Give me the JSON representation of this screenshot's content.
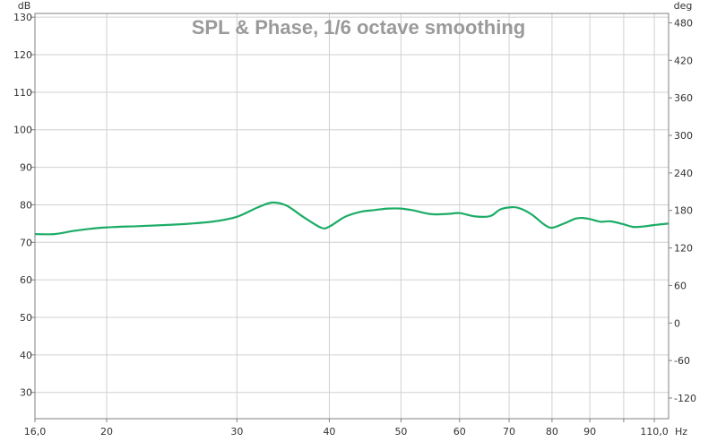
{
  "chart_data": {
    "type": "line",
    "title": "SPL & Phase, 1/6 octave smoothing",
    "ylabel_left": "dB",
    "ylabel_right": "deg",
    "xunit": "Hz",
    "xscale": "log",
    "xlim": [
      16,
      115
    ],
    "ylim": [
      23,
      131
    ],
    "ylim_right": [
      -153,
      495
    ],
    "x_ticks": [
      {
        "v": 16,
        "label": "16,0"
      },
      {
        "v": 20,
        "label": "20"
      },
      {
        "v": 30,
        "label": "30"
      },
      {
        "v": 40,
        "label": "40"
      },
      {
        "v": 50,
        "label": "50"
      },
      {
        "v": 60,
        "label": "60"
      },
      {
        "v": 70,
        "label": "70"
      },
      {
        "v": 80,
        "label": "80"
      },
      {
        "v": 90,
        "label": "90"
      },
      {
        "v": 100,
        "label": ""
      },
      {
        "v": 110,
        "label": "110,0"
      }
    ],
    "y_ticks": [
      {
        "v": 30,
        "label": "30"
      },
      {
        "v": 40,
        "label": "40"
      },
      {
        "v": 50,
        "label": "50"
      },
      {
        "v": 60,
        "label": "60"
      },
      {
        "v": 70,
        "label": "70"
      },
      {
        "v": 80,
        "label": "80"
      },
      {
        "v": 90,
        "label": "90"
      },
      {
        "v": 100,
        "label": "100"
      },
      {
        "v": 110,
        "label": "110"
      },
      {
        "v": 120,
        "label": "120"
      },
      {
        "v": 130,
        "label": "130"
      }
    ],
    "y_right_ticks": [
      {
        "v": -120,
        "label": "-120"
      },
      {
        "v": -60,
        "label": "-60"
      },
      {
        "v": 0,
        "label": "0"
      },
      {
        "v": 60,
        "label": "60"
      },
      {
        "v": 120,
        "label": "120"
      },
      {
        "v": 180,
        "label": "180"
      },
      {
        "v": 240,
        "label": "240"
      },
      {
        "v": 300,
        "label": "300"
      },
      {
        "v": 360,
        "label": "360"
      },
      {
        "v": 420,
        "label": "420"
      },
      {
        "v": 480,
        "label": "480"
      }
    ],
    "grid": true,
    "colors": {
      "spl": "#1cac66",
      "grid": "#d0d0d0",
      "axis": "#808080",
      "title": "#9a9a9a"
    },
    "series": [
      {
        "color": "#1cac66",
        "x": [
          16,
          17,
          18,
          19,
          20,
          22,
          24,
          26,
          28,
          30,
          32,
          33.5,
          35,
          37,
          39,
          40,
          42,
          44,
          46,
          48,
          50,
          52,
          55,
          58,
          60,
          63,
          66,
          68,
          70,
          72,
          75,
          78,
          80,
          83,
          86,
          88,
          90,
          93,
          96,
          100,
          103,
          106,
          110,
          115
        ],
        "y": [
          72.2,
          72.2,
          73.0,
          73.6,
          74.0,
          74.3,
          74.6,
          75.0,
          75.6,
          76.8,
          79.3,
          80.6,
          79.8,
          76.6,
          73.9,
          74.2,
          76.8,
          78.1,
          78.6,
          79.0,
          79.0,
          78.5,
          77.5,
          77.6,
          77.8,
          76.9,
          77.0,
          78.7,
          79.3,
          79.2,
          77.5,
          74.8,
          73.9,
          75.0,
          76.3,
          76.5,
          76.2,
          75.5,
          75.6,
          74.8,
          74.1,
          74.2,
          74.6,
          75.0
        ]
      }
    ]
  }
}
